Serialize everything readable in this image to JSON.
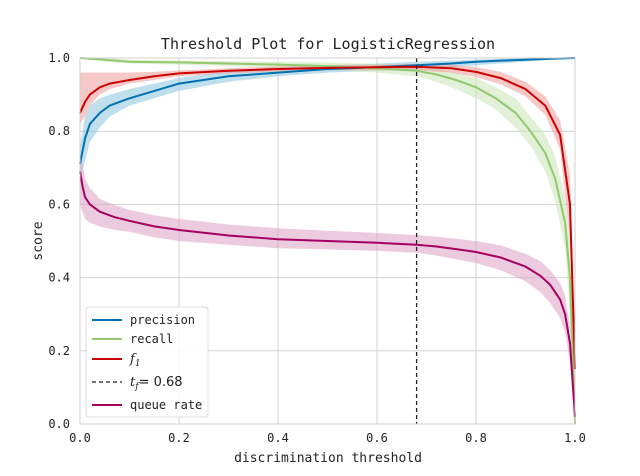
{
  "chart_data": {
    "type": "line",
    "title": "Threshold Plot for LogisticRegression",
    "xlabel": "discrimination threshold",
    "ylabel": "score",
    "xlim": [
      0.0,
      1.0
    ],
    "ylim": [
      0.0,
      1.0
    ],
    "xticks": [
      "0.0",
      "0.2",
      "0.4",
      "0.6",
      "0.8",
      "1.0"
    ],
    "yticks": [
      "0.0",
      "0.2",
      "0.4",
      "0.6",
      "0.8",
      "1.0"
    ],
    "grid": true,
    "legend_position": "lower-left",
    "threshold": {
      "label_prefix": "t",
      "label_sub": "f",
      "label_value": "= 0.68",
      "x": 0.68,
      "color": "#222222"
    },
    "series": [
      {
        "name": "precision",
        "label_text": "precision",
        "color": "#0072B2",
        "band_color": "#8cc4dc",
        "x": [
          0.0,
          0.01,
          0.02,
          0.04,
          0.06,
          0.1,
          0.15,
          0.2,
          0.3,
          0.4,
          0.5,
          0.6,
          0.68,
          0.75,
          0.8,
          0.85,
          0.9,
          0.95,
          1.0
        ],
        "y": [
          0.71,
          0.78,
          0.82,
          0.85,
          0.87,
          0.89,
          0.91,
          0.93,
          0.95,
          0.96,
          0.97,
          0.975,
          0.98,
          0.985,
          0.99,
          0.993,
          0.995,
          0.998,
          1.0
        ],
        "lower": [
          0.66,
          0.72,
          0.77,
          0.81,
          0.84,
          0.87,
          0.89,
          0.91,
          0.935,
          0.95,
          0.96,
          0.965,
          0.97,
          0.975,
          0.98,
          0.985,
          0.99,
          0.995,
          1.0
        ],
        "upper": [
          0.76,
          0.84,
          0.87,
          0.89,
          0.9,
          0.915,
          0.93,
          0.945,
          0.965,
          0.975,
          0.98,
          0.985,
          0.99,
          0.993,
          0.996,
          0.998,
          1.0,
          1.0,
          1.0
        ]
      },
      {
        "name": "recall",
        "label_text": "recall",
        "color": "#92c86e",
        "band_color": "#c8e3b4",
        "x": [
          0.0,
          0.05,
          0.1,
          0.2,
          0.3,
          0.4,
          0.5,
          0.6,
          0.68,
          0.72,
          0.76,
          0.8,
          0.84,
          0.88,
          0.91,
          0.94,
          0.96,
          0.98,
          0.99,
          1.0
        ],
        "y": [
          1.0,
          0.995,
          0.99,
          0.988,
          0.985,
          0.982,
          0.978,
          0.972,
          0.965,
          0.955,
          0.94,
          0.92,
          0.89,
          0.85,
          0.8,
          0.74,
          0.67,
          0.55,
          0.4,
          0.0
        ],
        "lower": [
          1.0,
          0.99,
          0.985,
          0.982,
          0.978,
          0.974,
          0.968,
          0.96,
          0.95,
          0.935,
          0.915,
          0.89,
          0.86,
          0.81,
          0.76,
          0.69,
          0.61,
          0.48,
          0.3,
          0.0
        ],
        "upper": [
          1.0,
          1.0,
          0.995,
          0.993,
          0.991,
          0.99,
          0.988,
          0.984,
          0.978,
          0.972,
          0.96,
          0.945,
          0.92,
          0.89,
          0.84,
          0.79,
          0.73,
          0.62,
          0.5,
          0.0
        ]
      },
      {
        "name": "f1",
        "label_text": "f",
        "label_sub": "1",
        "color": "#cc0000",
        "band_color": "#ee9a9a",
        "x": [
          0.0,
          0.01,
          0.02,
          0.04,
          0.06,
          0.1,
          0.15,
          0.2,
          0.3,
          0.4,
          0.5,
          0.6,
          0.68,
          0.75,
          0.8,
          0.85,
          0.9,
          0.94,
          0.97,
          0.99,
          1.0
        ],
        "y": [
          0.85,
          0.88,
          0.9,
          0.92,
          0.93,
          0.94,
          0.95,
          0.958,
          0.965,
          0.97,
          0.973,
          0.975,
          0.976,
          0.972,
          0.962,
          0.945,
          0.915,
          0.87,
          0.79,
          0.6,
          0.15
        ],
        "lower": [
          0.82,
          0.84,
          0.87,
          0.9,
          0.915,
          0.93,
          0.94,
          0.95,
          0.958,
          0.963,
          0.966,
          0.967,
          0.966,
          0.96,
          0.948,
          0.928,
          0.895,
          0.845,
          0.75,
          0.5,
          0.1
        ],
        "upper": [
          0.96,
          0.96,
          0.96,
          0.96,
          0.96,
          0.96,
          0.962,
          0.966,
          0.972,
          0.977,
          0.98,
          0.982,
          0.984,
          0.982,
          0.975,
          0.962,
          0.935,
          0.895,
          0.83,
          0.68,
          0.2
        ]
      },
      {
        "name": "queue rate",
        "label_text": "queue rate",
        "color": "#a50062",
        "band_color": "#dda0c4",
        "x": [
          0.0,
          0.005,
          0.01,
          0.02,
          0.04,
          0.07,
          0.1,
          0.15,
          0.2,
          0.3,
          0.4,
          0.5,
          0.6,
          0.68,
          0.72,
          0.76,
          0.8,
          0.85,
          0.9,
          0.93,
          0.95,
          0.97,
          0.98,
          0.99,
          1.0
        ],
        "y": [
          0.69,
          0.65,
          0.62,
          0.6,
          0.58,
          0.565,
          0.555,
          0.54,
          0.53,
          0.515,
          0.505,
          0.5,
          0.495,
          0.49,
          0.485,
          0.478,
          0.47,
          0.455,
          0.43,
          0.405,
          0.38,
          0.34,
          0.3,
          0.22,
          0.02
        ],
        "lower": [
          0.6,
          0.58,
          0.56,
          0.55,
          0.54,
          0.53,
          0.525,
          0.51,
          0.5,
          0.49,
          0.48,
          0.477,
          0.473,
          0.468,
          0.46,
          0.45,
          0.44,
          0.42,
          0.39,
          0.36,
          0.33,
          0.29,
          0.25,
          0.17,
          0.0
        ],
        "upper": [
          0.74,
          0.71,
          0.67,
          0.645,
          0.615,
          0.598,
          0.585,
          0.57,
          0.56,
          0.545,
          0.535,
          0.528,
          0.522,
          0.516,
          0.512,
          0.506,
          0.5,
          0.488,
          0.465,
          0.445,
          0.42,
          0.385,
          0.35,
          0.27,
          0.04
        ]
      }
    ]
  }
}
